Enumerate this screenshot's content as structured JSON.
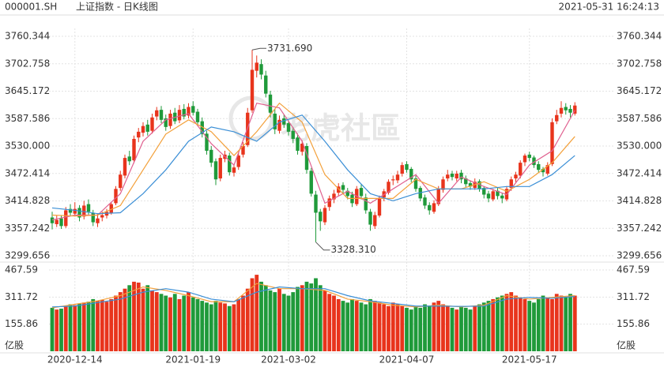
{
  "header": {
    "symbol": "000001.SH",
    "name": "上证指数 - 日K线图",
    "time": "2021-05-31 16:24:13",
    "watermark": "老虎社區"
  },
  "chart_data": {
    "type": "candlestick",
    "up_color": "#e8341c",
    "down_color": "#1f9a3a",
    "categories": [
      null,
      null,
      null,
      null,
      null,
      "2020-12-14",
      null,
      null,
      null,
      null,
      null,
      null,
      null,
      null,
      null,
      null,
      null,
      null,
      null,
      null,
      null,
      null,
      null,
      null,
      null,
      null,
      null,
      null,
      null,
      null,
      null,
      "2021-01-19",
      null,
      null,
      null,
      null,
      null,
      null,
      null,
      null,
      null,
      null,
      null,
      null,
      null,
      null,
      null,
      null,
      null,
      null,
      null,
      null,
      "2021-03-02",
      null,
      null,
      null,
      null,
      null,
      null,
      null,
      null,
      null,
      null,
      null,
      null,
      null,
      null,
      null,
      null,
      null,
      null,
      null,
      null,
      null,
      null,
      null,
      null,
      null,
      "2021-04-07",
      null,
      null,
      null,
      null,
      null,
      null,
      null,
      null,
      null,
      null,
      null,
      null,
      null,
      null,
      null,
      null,
      null,
      null,
      null,
      null,
      null,
      null,
      null,
      null,
      null,
      null,
      "2021-05-17",
      null,
      null,
      null,
      null,
      null,
      null,
      null,
      null,
      null,
      null
    ],
    "ohlc": [
      [
        3380,
        3392,
        3355,
        3368
      ],
      [
        3366,
        3384,
        3360,
        3375
      ],
      [
        3378,
        3385,
        3356,
        3362
      ],
      [
        3362,
        3402,
        3358,
        3395
      ],
      [
        3398,
        3408,
        3384,
        3390
      ],
      [
        3388,
        3412,
        3382,
        3398
      ],
      [
        3400,
        3406,
        3372,
        3380
      ],
      [
        3382,
        3415,
        3376,
        3405
      ],
      [
        3408,
        3418,
        3386,
        3392
      ],
      [
        3390,
        3396,
        3362,
        3370
      ],
      [
        3368,
        3388,
        3360,
        3378
      ],
      [
        3380,
        3392,
        3372,
        3385
      ],
      [
        3384,
        3398,
        3378,
        3392
      ],
      [
        3390,
        3412,
        3386,
        3408
      ],
      [
        3410,
        3446,
        3406,
        3440
      ],
      [
        3442,
        3478,
        3436,
        3470
      ],
      [
        3468,
        3512,
        3462,
        3505
      ],
      [
        3508,
        3520,
        3490,
        3498
      ],
      [
        3500,
        3552,
        3494,
        3545
      ],
      [
        3548,
        3568,
        3538,
        3560
      ],
      [
        3558,
        3580,
        3550,
        3572
      ],
      [
        3575,
        3585,
        3552,
        3560
      ],
      [
        3562,
        3598,
        3556,
        3590
      ],
      [
        3592,
        3612,
        3584,
        3605
      ],
      [
        3606,
        3614,
        3578,
        3585
      ],
      [
        3588,
        3596,
        3562,
        3570
      ],
      [
        3572,
        3606,
        3566,
        3598
      ],
      [
        3600,
        3610,
        3576,
        3582
      ],
      [
        3584,
        3616,
        3578,
        3606
      ],
      [
        3608,
        3618,
        3586,
        3592
      ],
      [
        3594,
        3620,
        3588,
        3612
      ],
      [
        3614,
        3624,
        3594,
        3600
      ],
      [
        3602,
        3608,
        3572,
        3580
      ],
      [
        3582,
        3590,
        3548,
        3555
      ],
      [
        3556,
        3562,
        3512,
        3520
      ],
      [
        3522,
        3530,
        3486,
        3495
      ],
      [
        3498,
        3504,
        3448,
        3460
      ],
      [
        3462,
        3512,
        3456,
        3505
      ],
      [
        3503,
        3520,
        3496,
        3512
      ],
      [
        3510,
        3516,
        3468,
        3475
      ],
      [
        3474,
        3492,
        3466,
        3485
      ],
      [
        3486,
        3516,
        3480,
        3510
      ],
      [
        3512,
        3538,
        3506,
        3530
      ],
      [
        3532,
        3610,
        3528,
        3600
      ],
      [
        3605,
        3731.69,
        3600,
        3690
      ],
      [
        3688,
        3720,
        3674,
        3705
      ],
      [
        3702,
        3712,
        3670,
        3680
      ],
      [
        3678,
        3688,
        3632,
        3640
      ],
      [
        3638,
        3646,
        3590,
        3600
      ],
      [
        3598,
        3608,
        3555,
        3565
      ],
      [
        3562,
        3594,
        3556,
        3585
      ],
      [
        3588,
        3596,
        3568,
        3575
      ],
      [
        3578,
        3584,
        3552,
        3560
      ],
      [
        3562,
        3570,
        3536,
        3545
      ],
      [
        3548,
        3556,
        3512,
        3520
      ],
      [
        3518,
        3542,
        3510,
        3535
      ],
      [
        3530,
        3536,
        3472,
        3480
      ],
      [
        3478,
        3484,
        3424,
        3430
      ],
      [
        3428,
        3436,
        3328.31,
        3390
      ],
      [
        3392,
        3398,
        3352,
        3372
      ],
      [
        3370,
        3406,
        3364,
        3400
      ],
      [
        3402,
        3426,
        3394,
        3420
      ],
      [
        3418,
        3438,
        3410,
        3430
      ],
      [
        3432,
        3452,
        3426,
        3445
      ],
      [
        3448,
        3454,
        3430,
        3438
      ],
      [
        3436,
        3442,
        3418,
        3425
      ],
      [
        3428,
        3434,
        3402,
        3410
      ],
      [
        3408,
        3446,
        3404,
        3440
      ],
      [
        3442,
        3450,
        3418,
        3425
      ],
      [
        3422,
        3430,
        3388,
        3395
      ],
      [
        3392,
        3398,
        3352,
        3365
      ],
      [
        3362,
        3392,
        3356,
        3385
      ],
      [
        3384,
        3426,
        3380,
        3420
      ],
      [
        3422,
        3440,
        3414,
        3435
      ],
      [
        3432,
        3460,
        3428,
        3455
      ],
      [
        3458,
        3468,
        3448,
        3460
      ],
      [
        3458,
        3478,
        3452,
        3470
      ],
      [
        3472,
        3496,
        3466,
        3490
      ],
      [
        3492,
        3498,
        3474,
        3480
      ],
      [
        3482,
        3486,
        3454,
        3460
      ],
      [
        3462,
        3468,
        3434,
        3440
      ],
      [
        3442,
        3446,
        3414,
        3420
      ],
      [
        3422,
        3428,
        3398,
        3405
      ],
      [
        3406,
        3412,
        3386,
        3395
      ],
      [
        3392,
        3416,
        3388,
        3410
      ],
      [
        3408,
        3446,
        3404,
        3440
      ],
      [
        3438,
        3466,
        3432,
        3460
      ],
      [
        3462,
        3480,
        3456,
        3470
      ],
      [
        3472,
        3478,
        3458,
        3465
      ],
      [
        3462,
        3478,
        3456,
        3472
      ],
      [
        3474,
        3480,
        3452,
        3460
      ],
      [
        3462,
        3468,
        3444,
        3450
      ],
      [
        3452,
        3458,
        3438,
        3445
      ],
      [
        3442,
        3462,
        3438,
        3455
      ],
      [
        3456,
        3460,
        3434,
        3440
      ],
      [
        3442,
        3446,
        3420,
        3428
      ],
      [
        3430,
        3436,
        3412,
        3420
      ],
      [
        3418,
        3440,
        3414,
        3435
      ],
      [
        3436,
        3442,
        3418,
        3425
      ],
      [
        3426,
        3432,
        3410,
        3420
      ],
      [
        3418,
        3446,
        3414,
        3440
      ],
      [
        3442,
        3466,
        3436,
        3460
      ],
      [
        3462,
        3476,
        3454,
        3470
      ],
      [
        3468,
        3500,
        3462,
        3495
      ],
      [
        3496,
        3514,
        3488,
        3510
      ],
      [
        3512,
        3518,
        3498,
        3505
      ],
      [
        3506,
        3510,
        3484,
        3490
      ],
      [
        3492,
        3498,
        3474,
        3480
      ],
      [
        3482,
        3486,
        3466,
        3475
      ],
      [
        3472,
        3496,
        3468,
        3490
      ],
      [
        3492,
        3588,
        3488,
        3580
      ],
      [
        3582,
        3606,
        3576,
        3595
      ],
      [
        3598,
        3624,
        3590,
        3610
      ],
      [
        3612,
        3620,
        3596,
        3605
      ],
      [
        3608,
        3616,
        3590,
        3600
      ],
      [
        3598,
        3622,
        3594,
        3615
      ]
    ],
    "volume": [
      250,
      240,
      245,
      260,
      270,
      265,
      275,
      280,
      285,
      300,
      290,
      295,
      285,
      300,
      320,
      340,
      360,
      380,
      400,
      395,
      360,
      380,
      350,
      340,
      330,
      320,
      310,
      330,
      300,
      320,
      340,
      310,
      300,
      290,
      280,
      270,
      290,
      280,
      275,
      260,
      270,
      300,
      320,
      360,
      420,
      440,
      400,
      380,
      350,
      340,
      360,
      330,
      320,
      340,
      370,
      380,
      400,
      390,
      420,
      380,
      350,
      330,
      320,
      300,
      290,
      280,
      300,
      290,
      280,
      270,
      300,
      290,
      280,
      270,
      260,
      280,
      270,
      260,
      250,
      240,
      260,
      250,
      270,
      260,
      280,
      290,
      270,
      260,
      250,
      240,
      260,
      250,
      240,
      260,
      270,
      280,
      290,
      300,
      310,
      320,
      330,
      340,
      320,
      310,
      300,
      290,
      280,
      300,
      320,
      310,
      300,
      330,
      320,
      310,
      330,
      320
    ],
    "ylim": [
      3299.656,
      3760.344
    ],
    "yticks": [
      3299.656,
      3357.242,
      3414.828,
      3472.414,
      {
        "value": 3530,
        "label": "3530.000"
      },
      3587.586,
      3645.172,
      3702.758,
      3760.344
    ],
    "y2lim": [
      0,
      467.59
    ],
    "y2ticks": [
      155.86,
      311.72,
      467.59
    ],
    "volume_unit": "亿股",
    "annotations": [
      {
        "index": 44,
        "value": 3731.69,
        "label": "3731.690"
      },
      {
        "index": 58,
        "value": 3328.31,
        "label": "3328.310"
      }
    ],
    "ma_x": [
      0,
      5,
      10,
      15,
      20,
      25,
      30,
      35,
      40,
      45,
      50,
      55,
      60,
      65,
      70,
      75,
      80,
      85,
      90,
      95,
      100,
      105,
      110,
      115
    ],
    "ma": [
      {
        "color": "#e0608f",
        "values": [
          3375,
          3385,
          3385,
          3430,
          3540,
          3585,
          3598,
          3535,
          3490,
          3620,
          3610,
          3540,
          3410,
          3435,
          3410,
          3440,
          3470,
          3410,
          3465,
          3445,
          3428,
          3490,
          3520,
          3605
        ]
      },
      {
        "color": "#f3a03a",
        "values": [
          3385,
          3383,
          3385,
          3405,
          3480,
          3555,
          3585,
          3560,
          3510,
          3560,
          3620,
          3580,
          3470,
          3420,
          3420,
          3420,
          3460,
          3440,
          3440,
          3455,
          3435,
          3460,
          3495,
          3550
        ]
      },
      {
        "color": "#3b8fd6",
        "values": [
          3400,
          3395,
          3388,
          3390,
          3430,
          3480,
          3540,
          3570,
          3560,
          3540,
          3580,
          3595,
          3540,
          3480,
          3430,
          3415,
          3430,
          3440,
          3440,
          3440,
          3445,
          3445,
          3470,
          3510
        ]
      }
    ],
    "volume_ma": [
      {
        "color": "#f3a03a",
        "values": [
          250,
          270,
          290,
          320,
          370,
          350,
          320,
          285,
          285,
          390,
          360,
          360,
          350,
          300,
          285,
          265,
          255,
          265,
          255,
          265,
          320,
          300,
          310,
          320
        ]
      },
      {
        "color": "#3b8fd6",
        "values": [
          255,
          260,
          280,
          300,
          340,
          360,
          340,
          300,
          285,
          340,
          370,
          360,
          360,
          320,
          290,
          275,
          260,
          260,
          258,
          260,
          300,
          310,
          305,
          315
        ]
      }
    ]
  }
}
